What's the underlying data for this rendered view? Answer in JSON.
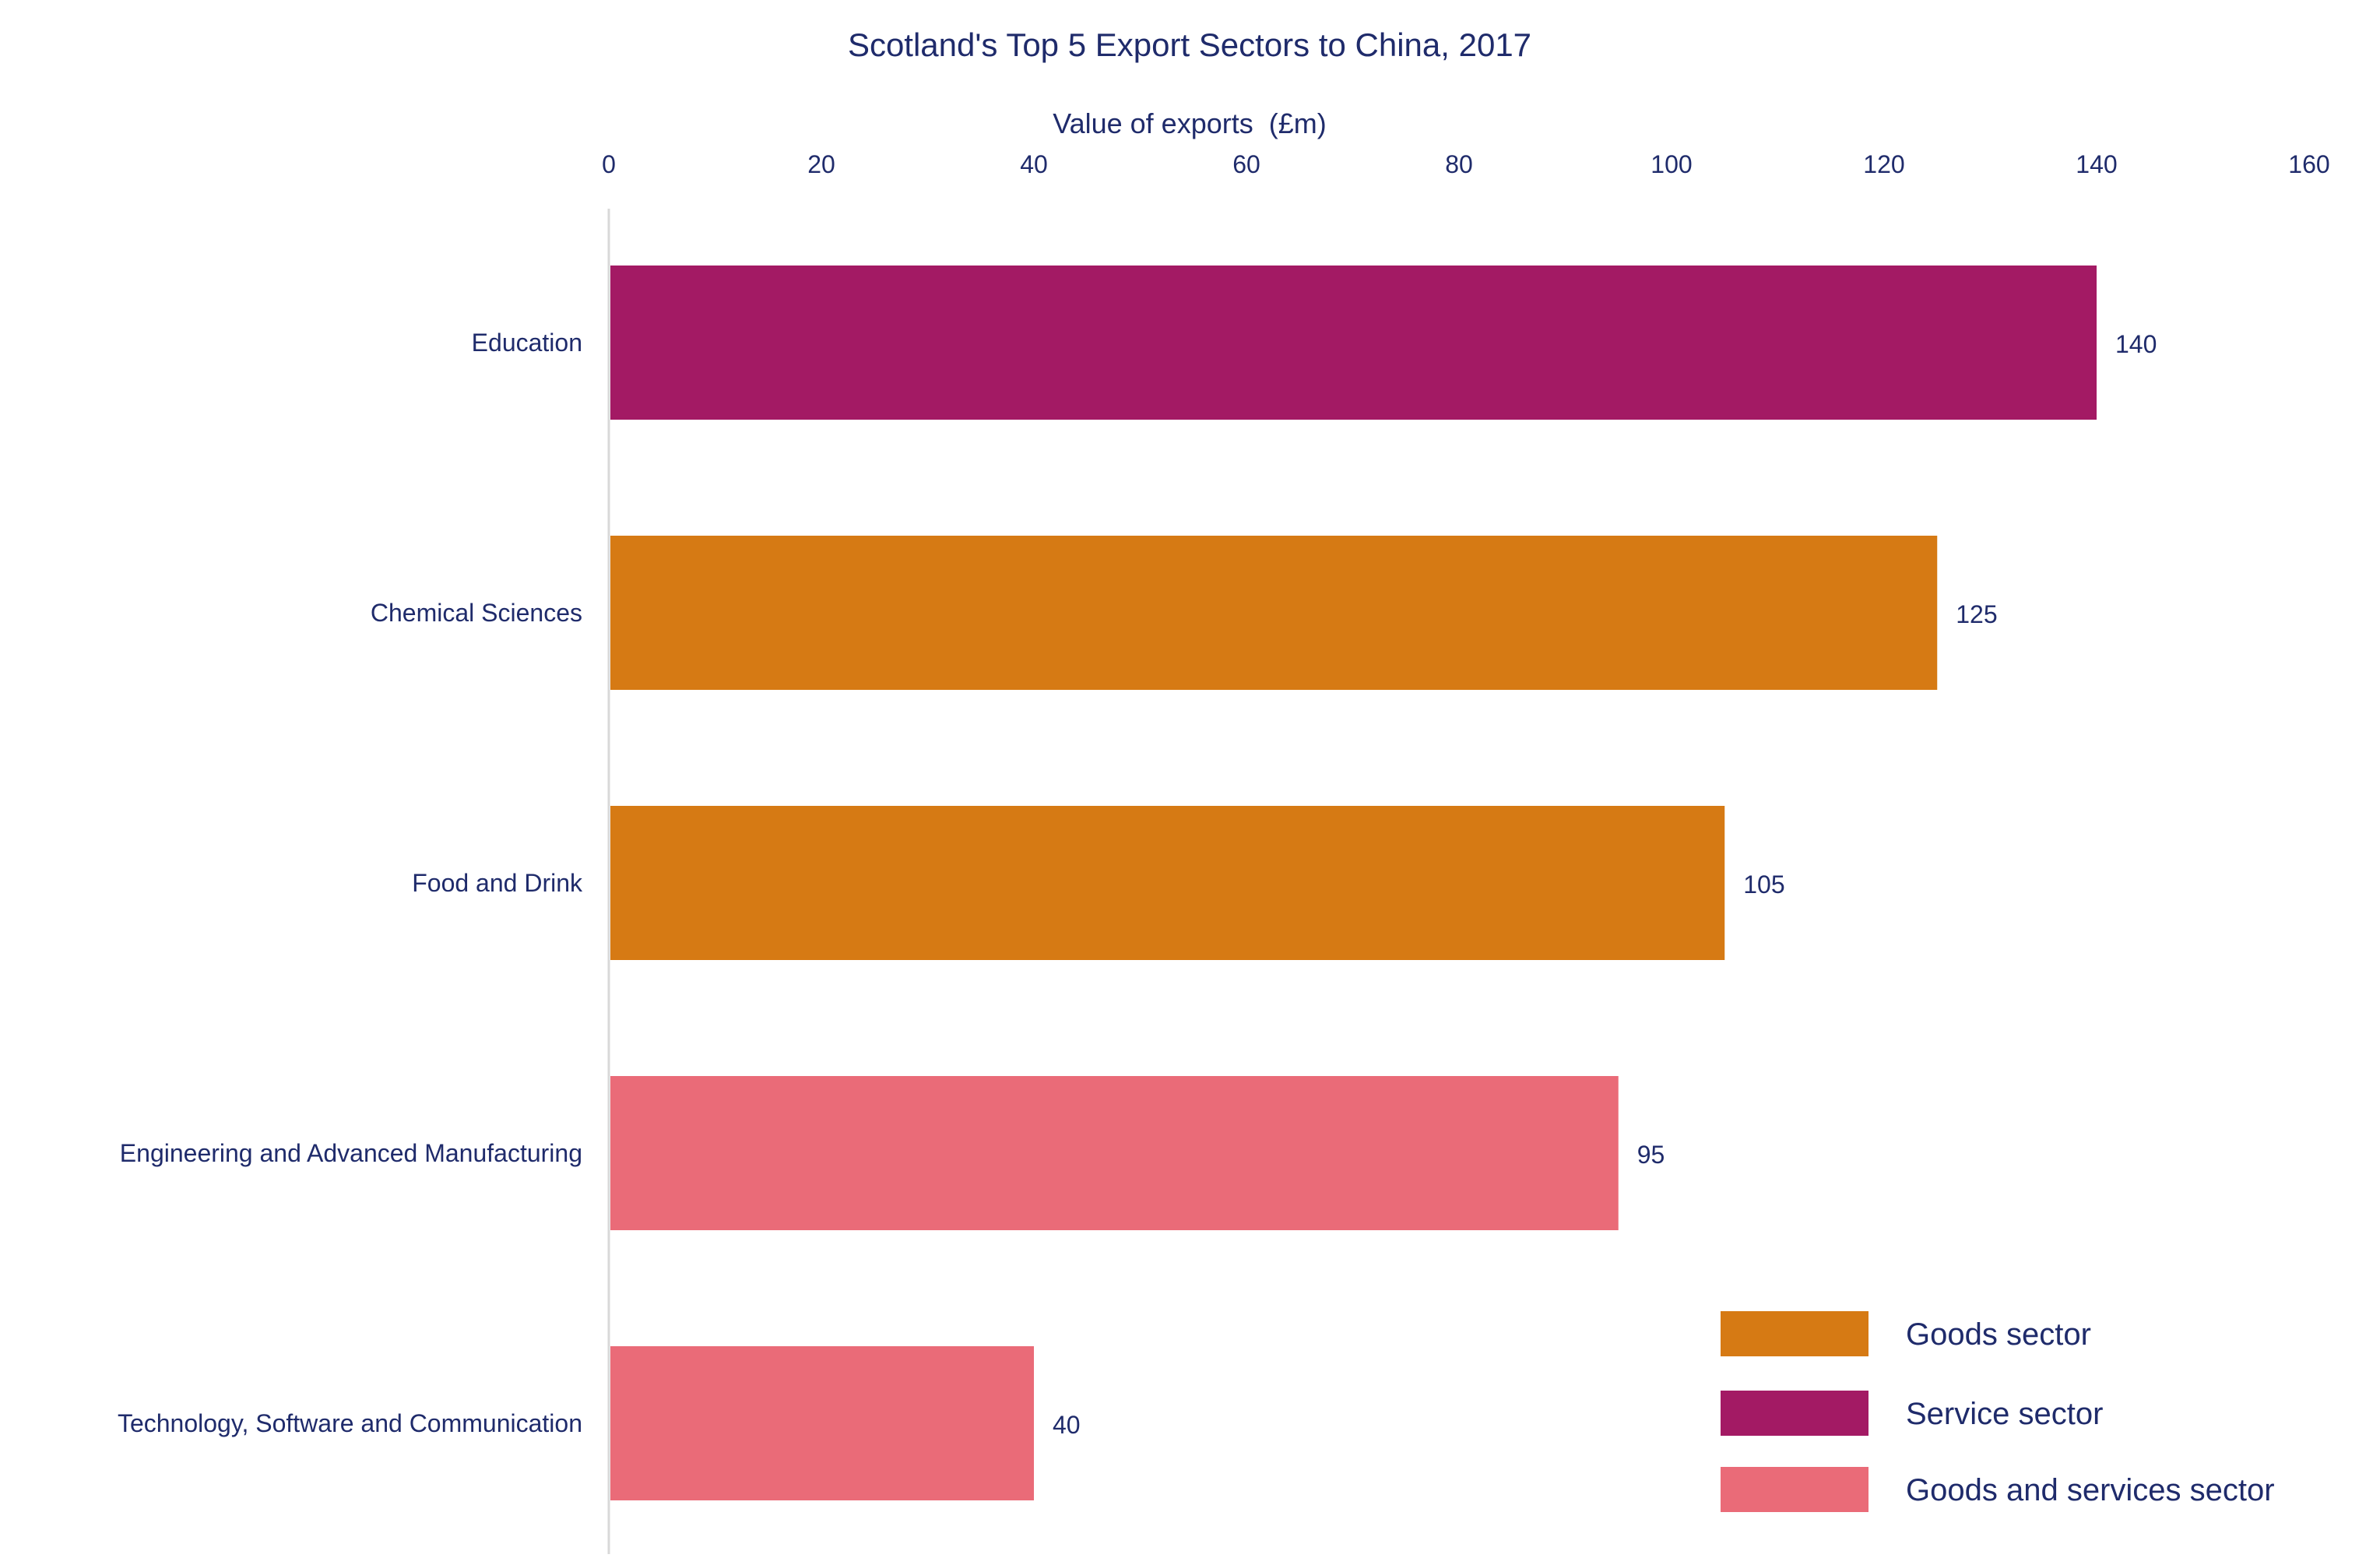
{
  "chart_data": {
    "type": "bar",
    "orientation": "horizontal",
    "title": "Scotland's Top 5 Export Sectors to China, 2017",
    "xlabel": "Value of exports  (£m)",
    "ylabel": "",
    "xlim": [
      0,
      160
    ],
    "ticks": [
      0,
      20,
      40,
      60,
      80,
      100,
      120,
      140,
      160
    ],
    "tick_labels": [
      "0",
      "20",
      "40",
      "60",
      "80",
      "100",
      "120",
      "140",
      "160"
    ],
    "x_axis_position": "top",
    "grid": false,
    "categories": [
      "Education",
      "Chemical Sciences",
      "Food and Drink",
      "Engineering and Advanced Manufacturing",
      "Technology, Software and Communication"
    ],
    "values": [
      140,
      125,
      105,
      95,
      40
    ],
    "data_labels": [
      "140",
      "125",
      "105",
      "95",
      "40"
    ],
    "bar_groups": [
      "Service sector",
      "Goods sector",
      "Goods sector",
      "Goods and services sector",
      "Goods and services sector"
    ],
    "legend": {
      "placement": "bottom-right",
      "entries": [
        {
          "label": "Goods sector",
          "color": "#D67A14"
        },
        {
          "label": "Service sector",
          "color": "#A31A64"
        },
        {
          "label": "Goods and services sector",
          "color": "#EA6B78"
        }
      ]
    },
    "colors": {
      "text": "#1F2B6B",
      "axis_line": "#D9D9D9"
    }
  }
}
